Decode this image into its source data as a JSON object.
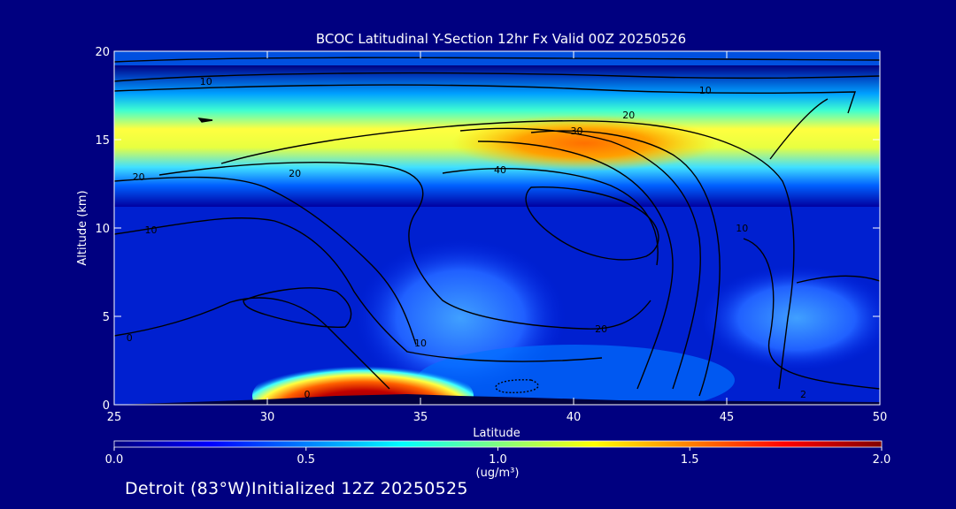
{
  "chart_data": {
    "type": "heatmap",
    "title": "BCOC Latitudinal Y-Section 12hr  Fx Valid 00Z 20250526",
    "xlabel": "Latitude",
    "ylabel": "Altitude (km)",
    "xlim": [
      25,
      50
    ],
    "ylim": [
      0,
      20
    ],
    "x_ticks": [
      25,
      30,
      35,
      40,
      45,
      50
    ],
    "y_ticks": [
      0,
      5,
      10,
      15,
      20
    ],
    "colorbar": {
      "range": [
        0.0,
        2.0
      ],
      "ticks": [
        "0.0",
        "0.5",
        "1.0",
        "1.5",
        "2.0"
      ],
      "label": "(ug/m³)",
      "colors": [
        "#00007f",
        "#0000ff",
        "#0080ff",
        "#00ffff",
        "#80ff80",
        "#ffff00",
        "#ff8000",
        "#ff0000",
        "#800000"
      ]
    },
    "contour_labels": [
      {
        "text": "10",
        "lat": 28.0,
        "alt": 18.3
      },
      {
        "text": "10",
        "lat": 44.3,
        "alt": 17.8
      },
      {
        "text": "20",
        "lat": 41.8,
        "alt": 16.4
      },
      {
        "text": "30",
        "lat": 40.1,
        "alt": 15.5
      },
      {
        "text": "40",
        "lat": 37.6,
        "alt": 13.3
      },
      {
        "text": "20",
        "lat": 25.8,
        "alt": 12.9
      },
      {
        "text": "20",
        "lat": 30.9,
        "alt": 13.1
      },
      {
        "text": "10",
        "lat": 26.2,
        "alt": 9.9
      },
      {
        "text": "10",
        "lat": 45.5,
        "alt": 10.0
      },
      {
        "text": "20",
        "lat": 40.9,
        "alt": 4.3
      },
      {
        "text": "10",
        "lat": 35.0,
        "alt": 3.5
      },
      {
        "text": "0",
        "lat": 25.5,
        "alt": 3.8
      },
      {
        "text": "0",
        "lat": 31.3,
        "alt": 0.6
      },
      {
        "text": "2",
        "lat": 47.5,
        "alt": 0.6
      }
    ],
    "grid": false
  },
  "footer_text": "Detroit (83°W)Initialized 12Z 20250525"
}
